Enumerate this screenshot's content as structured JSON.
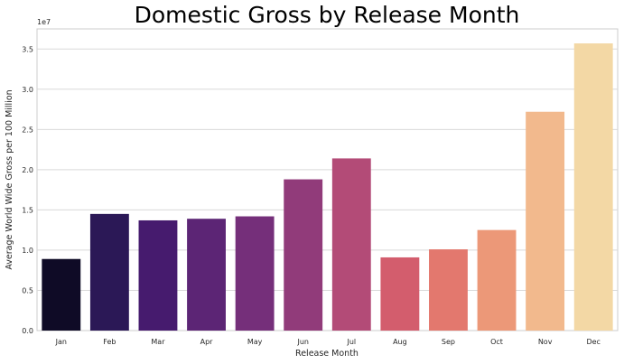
{
  "chart_data": {
    "type": "bar",
    "title": "Domestic Gross by Release Month",
    "xlabel": "Release Month",
    "ylabel": "Average World Wide Gross per 100 Million",
    "offset_label": "1e7",
    "categories": [
      "Jan",
      "Feb",
      "Mar",
      "Apr",
      "May",
      "Jun",
      "Jul",
      "Aug",
      "Sep",
      "Oct",
      "Nov",
      "Dec"
    ],
    "values": [
      8.9,
      14.5,
      13.7,
      13.9,
      14.2,
      18.8,
      21.4,
      9.1,
      10.1,
      12.5,
      27.2,
      35.7
    ],
    "value_scale": "x1e6",
    "yticks": [
      "0.0",
      "0.5",
      "1.0",
      "1.5",
      "2.0",
      "2.5",
      "3.0",
      "3.5"
    ],
    "ylim": [
      0,
      3.75
    ],
    "grid": true,
    "legend": "none",
    "colors": [
      "#0f0b26",
      "#2b1856",
      "#461b6e",
      "#5c2575",
      "#752f7a",
      "#913b7a",
      "#b34b77",
      "#d35d6d",
      "#e3786e",
      "#ec9878",
      "#f2b98d",
      "#f3d8a5"
    ]
  }
}
